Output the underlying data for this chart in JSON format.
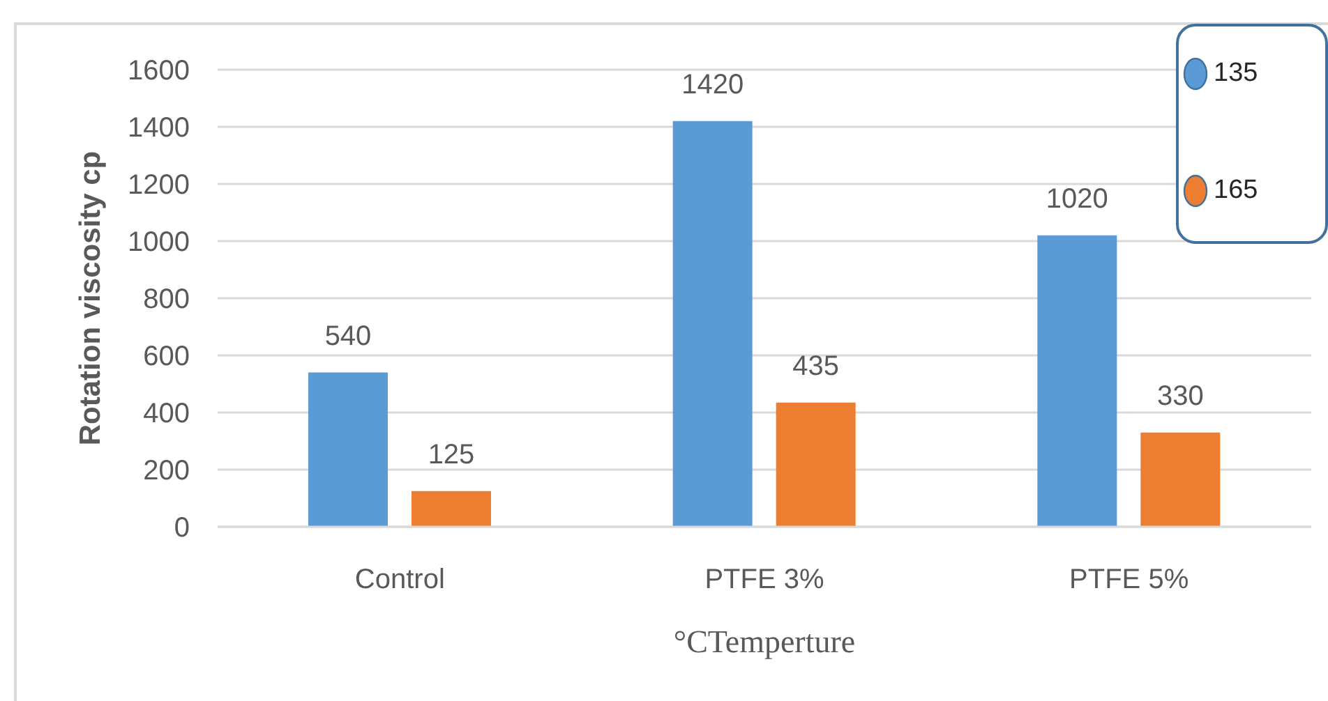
{
  "chart_data": {
    "type": "bar",
    "xlabel": "°CTemperture",
    "ylabel": "Rotation viscosity cp",
    "categories": [
      "Control",
      "PTFE 3%",
      "PTFE 5%"
    ],
    "series": [
      {
        "name": "135",
        "color": "#5b9bd5",
        "values": [
          540,
          1420,
          1020
        ]
      },
      {
        "name": "165",
        "color": "#ed7d31",
        "values": [
          125,
          435,
          330
        ]
      }
    ],
    "ylim": [
      0,
      1600
    ],
    "yticks": [
      0,
      200,
      400,
      600,
      800,
      1000,
      1200,
      1400,
      1600
    ],
    "grid": "y",
    "legend": "top right",
    "data_labels": true
  }
}
